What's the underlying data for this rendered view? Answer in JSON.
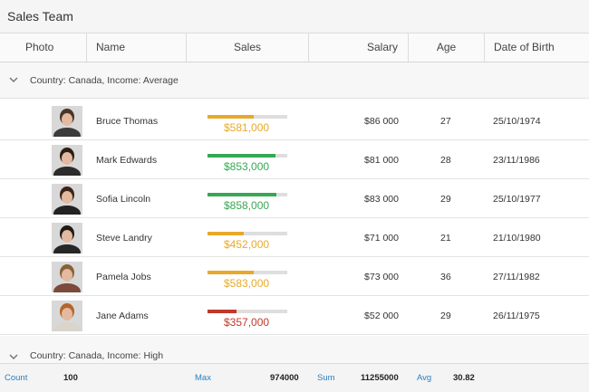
{
  "title": "Sales Team",
  "columns": {
    "photo": "Photo",
    "name": "Name",
    "sales": "Sales",
    "salary": "Salary",
    "age": "Age",
    "dob": "Date of Birth"
  },
  "groups": [
    {
      "label": "Country: Canada, Income: Average"
    },
    {
      "label": "Country: Canada, Income: High"
    }
  ],
  "rows": [
    {
      "name": "Bruce Thomas",
      "sales": "$581,000",
      "sales_level": 0.58,
      "sales_color": "#e8a92a",
      "salary": "$86 000",
      "age": "27",
      "dob": "25/10/1974",
      "hair": "#4a3626",
      "shirt": "#3b3b3b"
    },
    {
      "name": "Mark Edwards",
      "sales": "$853,000",
      "sales_level": 0.85,
      "sales_color": "#36a853",
      "salary": "$81 000",
      "age": "28",
      "dob": "23/11/1986",
      "hair": "#2a1e16",
      "shirt": "#2b2b2b"
    },
    {
      "name": "Sofia Lincoln",
      "sales": "$858,000",
      "sales_level": 0.86,
      "sales_color": "#36a853",
      "salary": "$83 000",
      "age": "29",
      "dob": "25/10/1977",
      "hair": "#3a2418",
      "shirt": "#222222"
    },
    {
      "name": "Steve Landry",
      "sales": "$452,000",
      "sales_level": 0.45,
      "sales_color": "#e8a92a",
      "salary": "$71 000",
      "age": "21",
      "dob": "21/10/1980",
      "hair": "#1f1a16",
      "shirt": "#262626"
    },
    {
      "name": "Pamela Jobs",
      "sales": "$583,000",
      "sales_level": 0.58,
      "sales_color": "#e8a92a",
      "salary": "$73 000",
      "age": "36",
      "dob": "27/11/1982",
      "hair": "#8a6038",
      "shirt": "#7b4a3a"
    },
    {
      "name": "Jane Adams",
      "sales": "$357,000",
      "sales_level": 0.36,
      "sales_color": "#c0392b",
      "salary": "$52 000",
      "age": "29",
      "dob": "26/11/1975",
      "hair": "#b5652b",
      "shirt": "#d9d4cc"
    }
  ],
  "footer": {
    "count_label": "Count",
    "count_value": "100",
    "max_label": "Max",
    "max_value": "974000",
    "sum_label": "Sum",
    "sum_value": "11255000",
    "avg_label": "Avg",
    "avg_value": "30.82"
  }
}
